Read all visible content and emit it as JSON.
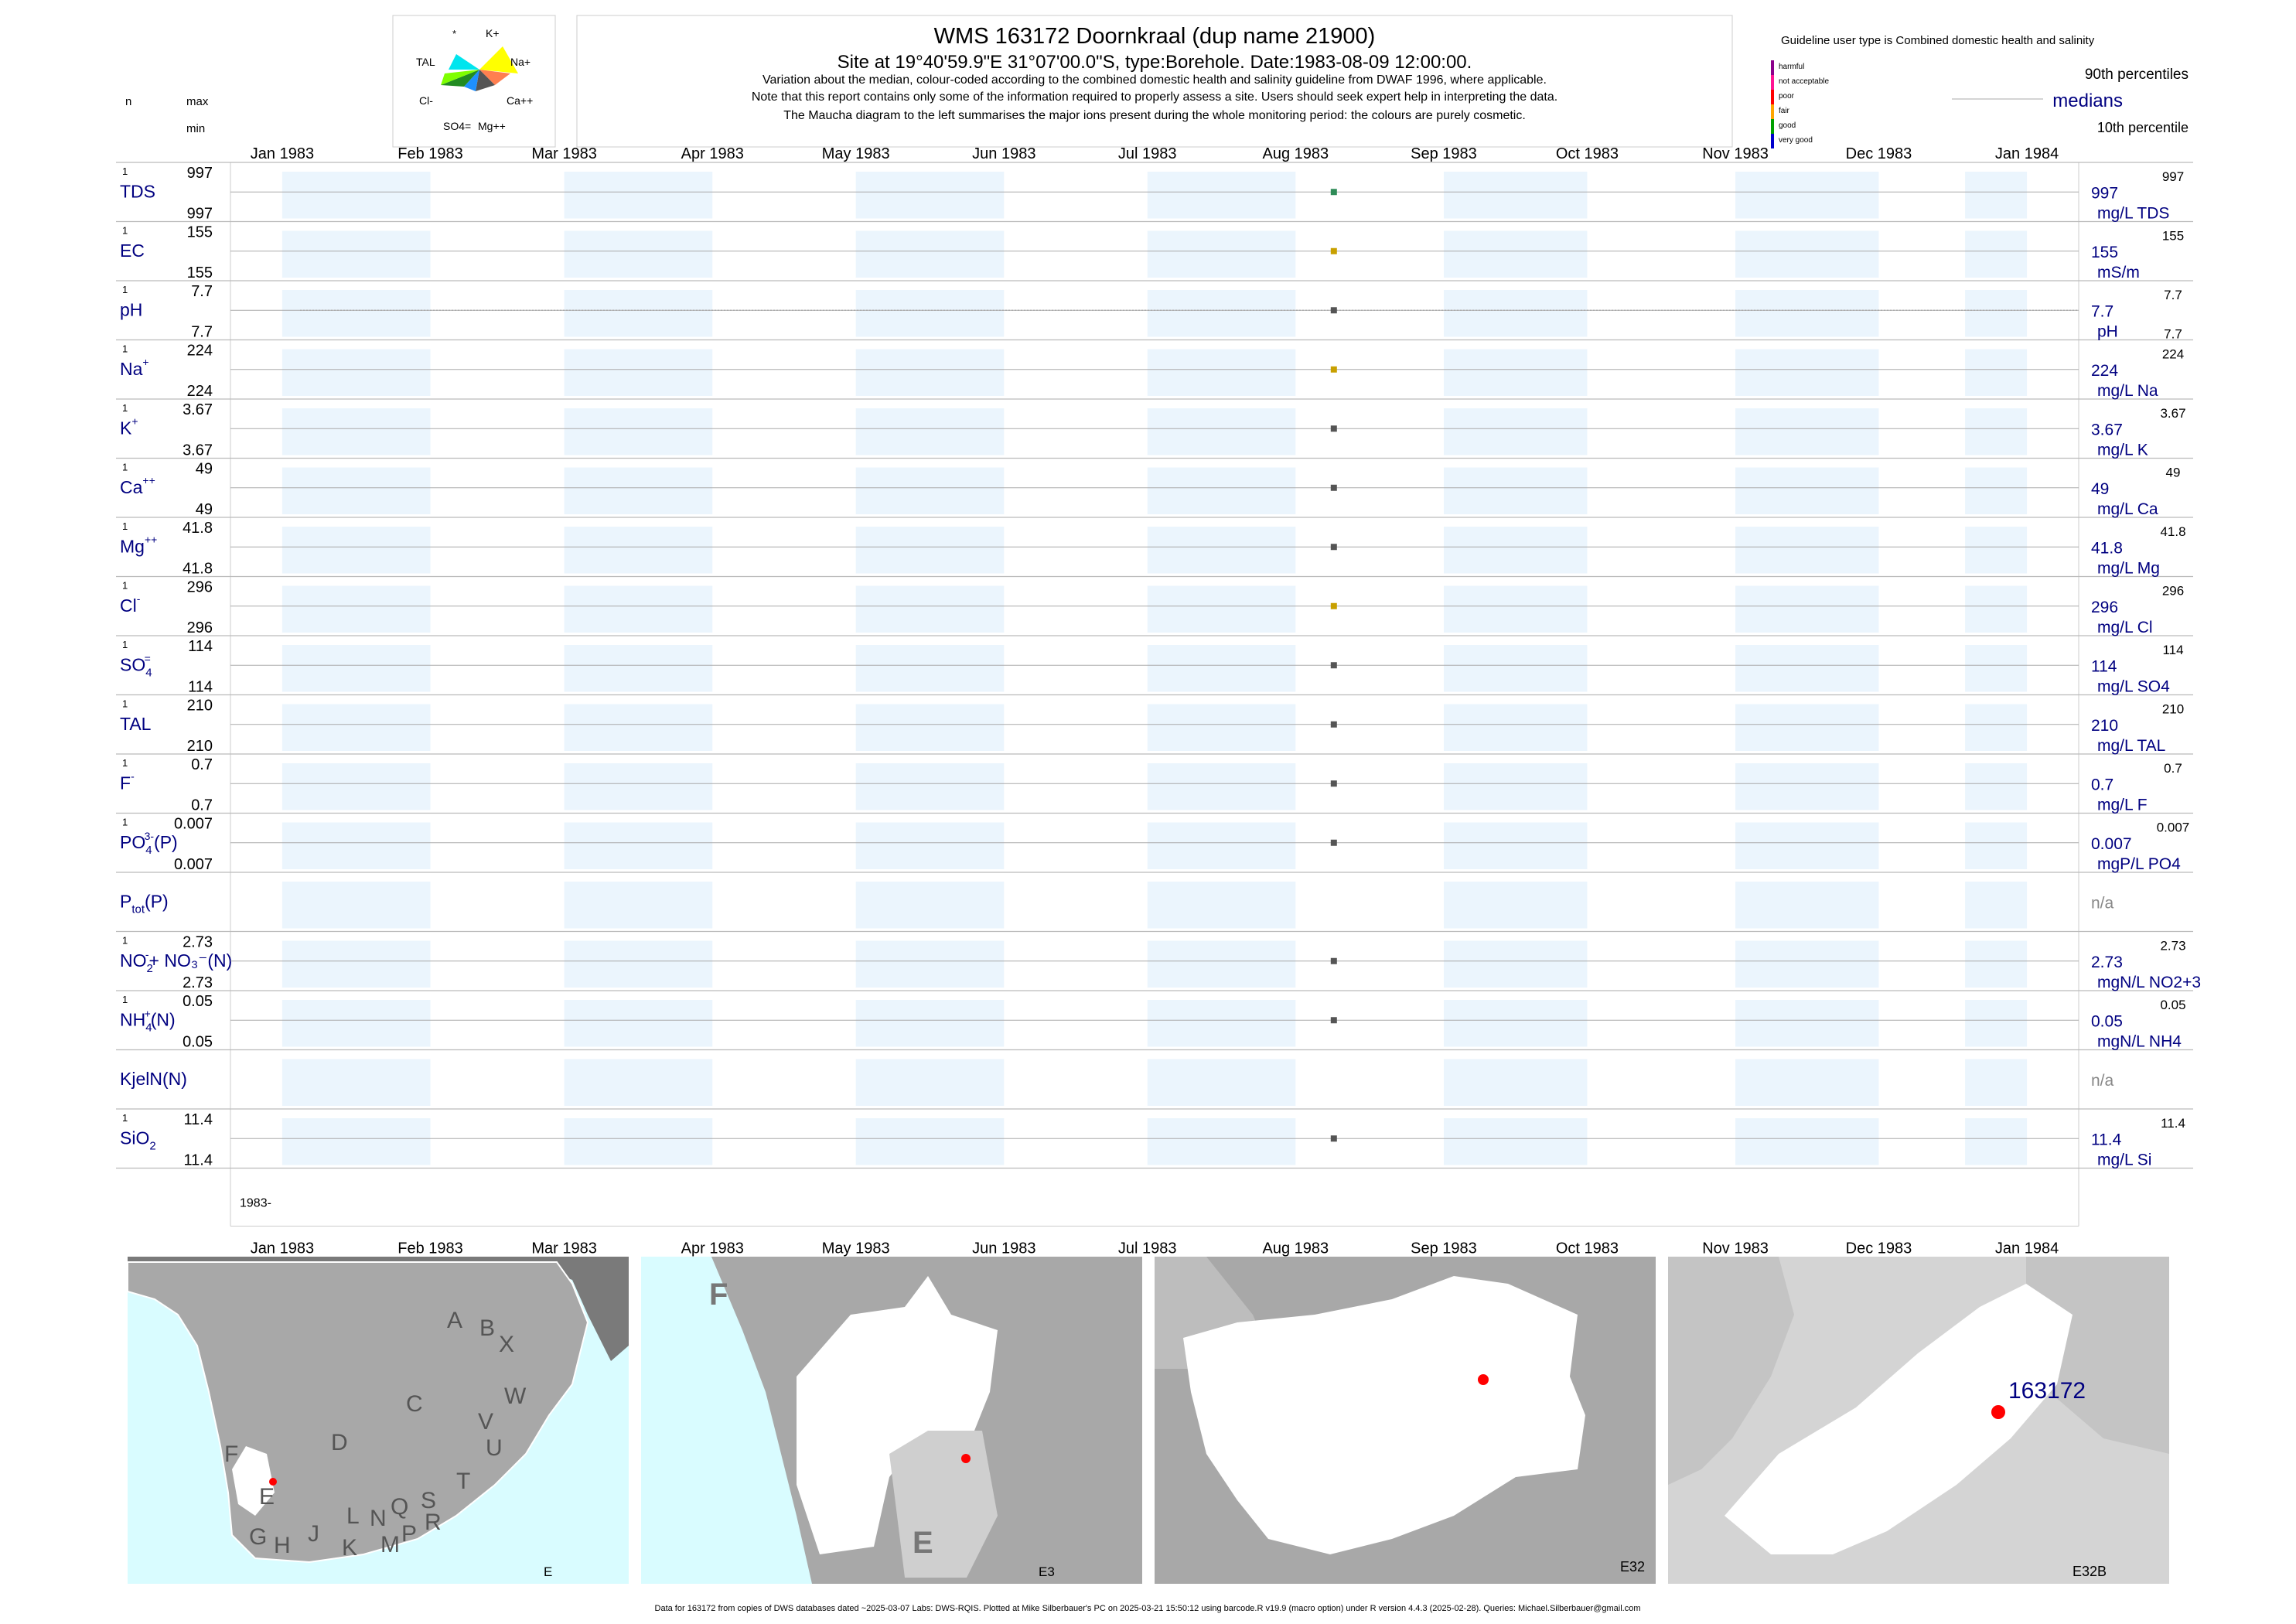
{
  "header": {
    "title": "WMS 163172  Doornkraal (dup name 21900)",
    "site_line": "Site at 19°40'59.9\"E 31°07'00.0\"S, type:Borehole. Date:1983-08-09 12:00:00.",
    "notes": [
      "Variation about the median,  colour-coded according to the combined domestic health and salinity guideline from DWAF 1996, where applicable.",
      "Note that this report contains only some of the information required to properly assess a site. Users should seek expert help in interpreting the data.",
      "The Maucha diagram to the left summarises the major ions present during the whole monitoring period: the colours are purely cosmetic."
    ]
  },
  "left_header": {
    "n": "n",
    "max": "max",
    "min": "min"
  },
  "maucha": {
    "labels": [
      "*",
      "K+",
      "TAL",
      "Na+",
      "Cl-",
      "Ca++",
      "SO4=",
      "Mg++"
    ],
    "colors": [
      "#f2f2f2",
      "#00e5ee",
      "#7fff00",
      "#ffff00",
      "#228b22",
      "#ff7f50",
      "#1e90ff",
      "#555555"
    ]
  },
  "legend": {
    "title": "Guideline user type is Combined domestic health and salinity",
    "classes": [
      {
        "label": "harmful",
        "color": "#8b008b"
      },
      {
        "label": "not acceptable",
        "color": "#ff1493"
      },
      {
        "label": "poor",
        "color": "#ff0000"
      },
      {
        "label": "fair",
        "color": "#ffa500"
      },
      {
        "label": "good",
        "color": "#00a000"
      },
      {
        "label": "very good",
        "color": "#0000cd"
      }
    ],
    "p90": "90th percentiles",
    "median": "medians",
    "p10": "10th percentile"
  },
  "chart_data": {
    "type": "scatter",
    "x_ticks": [
      "Jan 1983",
      "Feb 1983",
      "Mar 1983",
      "Apr 1983",
      "May 1983",
      "Jun 1983",
      "Jul 1983",
      "Aug 1983",
      "Sep 1983",
      "Oct 1983",
      "Nov 1983",
      "Dec 1983",
      "Jan 1984"
    ],
    "xlim": [
      "1983-01-01",
      "1984-01-01"
    ],
    "year_label": "1983-",
    "sample_date": "1983-08-09",
    "rows": [
      {
        "label": "TDS",
        "n": "1",
        "max": "997",
        "min": "997",
        "median": "997",
        "p90": "997",
        "unit": "mg/L TDS",
        "color": "#2e8b57"
      },
      {
        "label": "EC",
        "n": "1",
        "max": "155",
        "min": "155",
        "median": "155",
        "p90": "155",
        "unit": "mS/m",
        "color": "#c8a000"
      },
      {
        "label": "pH",
        "n": "1",
        "max": "7.7",
        "min": "7.7",
        "median": "7.7",
        "p90": "7.7",
        "p10": "7.7",
        "unit": "pH",
        "color": "#555555"
      },
      {
        "label": "Na",
        "sup": "+",
        "n": "1",
        "max": "224",
        "min": "224",
        "median": "224",
        "p90": "224",
        "unit": "mg/L Na",
        "color": "#c8a000"
      },
      {
        "label": "K",
        "sup": "+",
        "n": "1",
        "max": "3.67",
        "min": "3.67",
        "median": "3.67",
        "p90": "3.67",
        "unit": "mg/L K",
        "color": "#555555"
      },
      {
        "label": "Ca",
        "sup": "++",
        "n": "1",
        "max": "49",
        "min": "49",
        "median": "49",
        "p90": "49",
        "unit": "mg/L Ca",
        "color": "#555555"
      },
      {
        "label": "Mg",
        "sup": "++",
        "n": "1",
        "max": "41.8",
        "min": "41.8",
        "median": "41.8",
        "p90": "41.8",
        "unit": "mg/L Mg",
        "color": "#555555"
      },
      {
        "label": "Cl",
        "sup": "-",
        "n": "1",
        "max": "296",
        "min": "296",
        "median": "296",
        "p90": "296",
        "unit": "mg/L Cl",
        "color": "#c8a000"
      },
      {
        "label": "SO",
        "sub": "4",
        "sup": "=",
        "n": "1",
        "max": "114",
        "min": "114",
        "median": "114",
        "p90": "114",
        "unit": "mg/L SO4",
        "color": "#555555"
      },
      {
        "label": "TAL",
        "n": "1",
        "max": "210",
        "min": "210",
        "median": "210",
        "p90": "210",
        "unit": "mg/L TAL",
        "color": "#555555"
      },
      {
        "label": "F",
        "sup": "-",
        "n": "1",
        "max": "0.7",
        "min": "0.7",
        "median": "0.7",
        "p90": "0.7",
        "unit": "mg/L F",
        "color": "#555555"
      },
      {
        "label": "PO",
        "sub": "4",
        "sup": "3-",
        "suffix": "(P)",
        "n": "1",
        "max": "0.007",
        "min": "0.007",
        "median": "0.007",
        "p90": "0.007",
        "unit": "mgP/L PO4",
        "color": "#555555"
      },
      {
        "label": "P",
        "sub": "tot",
        "suffix": "(P)",
        "na": "n/a"
      },
      {
        "label": "NO",
        "sub": "2",
        "sup": "-",
        "suffix": "+ NO₃⁻(N)",
        "n": "1",
        "max": "2.73",
        "min": "2.73",
        "median": "2.73",
        "p90": "2.73",
        "unit": "mgN/L NO2+3",
        "color": "#555555"
      },
      {
        "label": "NH",
        "sub": "4",
        "sup": "+",
        "suffix": "(N)",
        "n": "1",
        "max": "0.05",
        "min": "0.05",
        "median": "0.05",
        "p90": "0.05",
        "unit": "mgN/L NH4",
        "color": "#555555"
      },
      {
        "label": "KjelN(N)",
        "na": "n/a"
      },
      {
        "label": "SiO",
        "sub": "2",
        "n": "1",
        "max": "11.4",
        "min": "11.4",
        "median": "11.4",
        "p90": "11.4",
        "unit": "mg/L Si",
        "color": "#555555"
      }
    ]
  },
  "maps": {
    "panels": [
      {
        "caption": "E",
        "letters": [
          "A",
          "B",
          "X",
          "W",
          "C",
          "V",
          "U",
          "D",
          "T",
          "F",
          "E",
          "G",
          "H",
          "J",
          "K",
          "L",
          "N",
          "Q",
          "M",
          "P",
          "S",
          "R"
        ]
      },
      {
        "caption": "E3",
        "letters": [
          "F",
          "E"
        ]
      },
      {
        "caption": "E32",
        "letters": []
      },
      {
        "caption": "E32B",
        "letters": [],
        "site": "163172"
      }
    ],
    "colors": {
      "sea": "#d9fcff",
      "land": "#a8a8a8",
      "catchment": "#ffffff",
      "site": "#ff0000"
    }
  },
  "footer": "Data for 163172 from copies of DWS databases dated ~2025-03-07 Labs: DWS-RQIS. Plotted at Mike Silberbauer's PC on 2025-03-21 15:50:12 using barcode.R v19.9 (macro option) under R version 4.4.3 (2025-02-28). Queries: Michael.Silberbauer@gmail.com"
}
